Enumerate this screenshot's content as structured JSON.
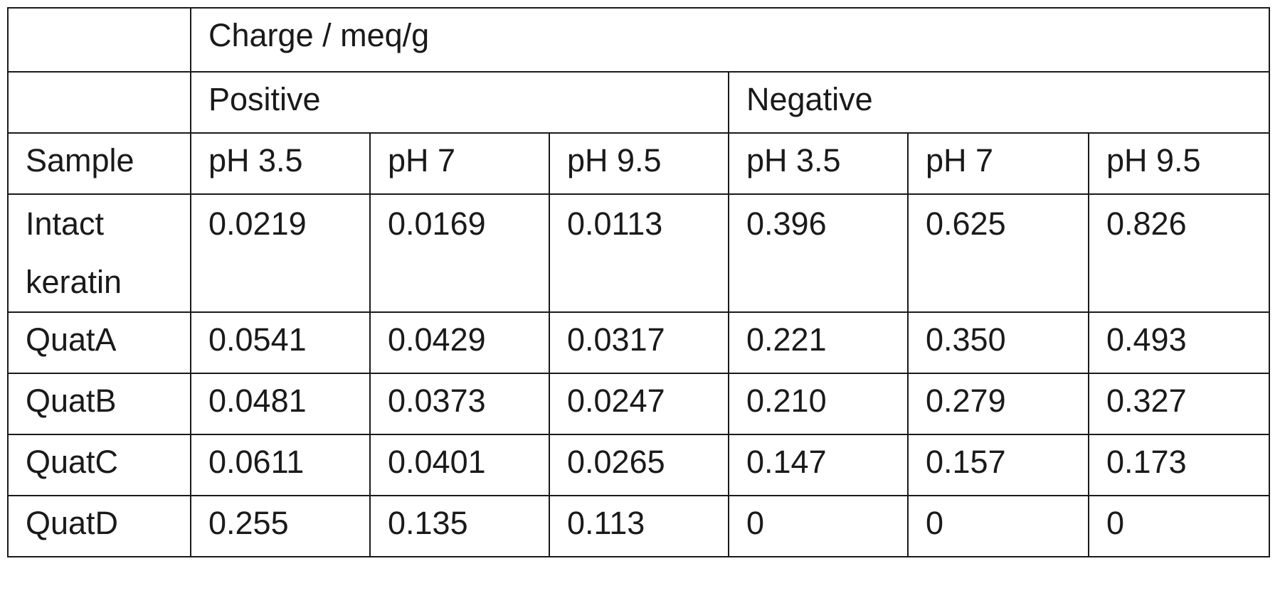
{
  "title": "Charge / meq/g",
  "groups": {
    "positive": "Positive",
    "negative": "Negative"
  },
  "header": {
    "sample": "Sample",
    "ph": [
      "pH 3.5",
      "pH 7",
      "pH 9.5",
      "pH 3.5",
      "pH 7",
      "pH 9.5"
    ]
  },
  "rows": [
    {
      "sample": "Intact keratin",
      "values": [
        "0.0219",
        "0.0169",
        "0.0113",
        "0.396",
        "0.625",
        "0.826"
      ]
    },
    {
      "sample": "QuatA",
      "values": [
        "0.0541",
        "0.0429",
        "0.0317",
        "0.221",
        "0.350",
        "0.493"
      ]
    },
    {
      "sample": "QuatB",
      "values": [
        "0.0481",
        "0.0373",
        "0.0247",
        "0.210",
        "0.279",
        "0.327"
      ]
    },
    {
      "sample": "QuatC",
      "values": [
        "0.0611",
        "0.0401",
        "0.0265",
        "0.147",
        "0.157",
        "0.173"
      ]
    },
    {
      "sample": "QuatD",
      "values": [
        "0.255",
        "0.135",
        "0.113",
        "0",
        "0",
        "0"
      ]
    }
  ]
}
